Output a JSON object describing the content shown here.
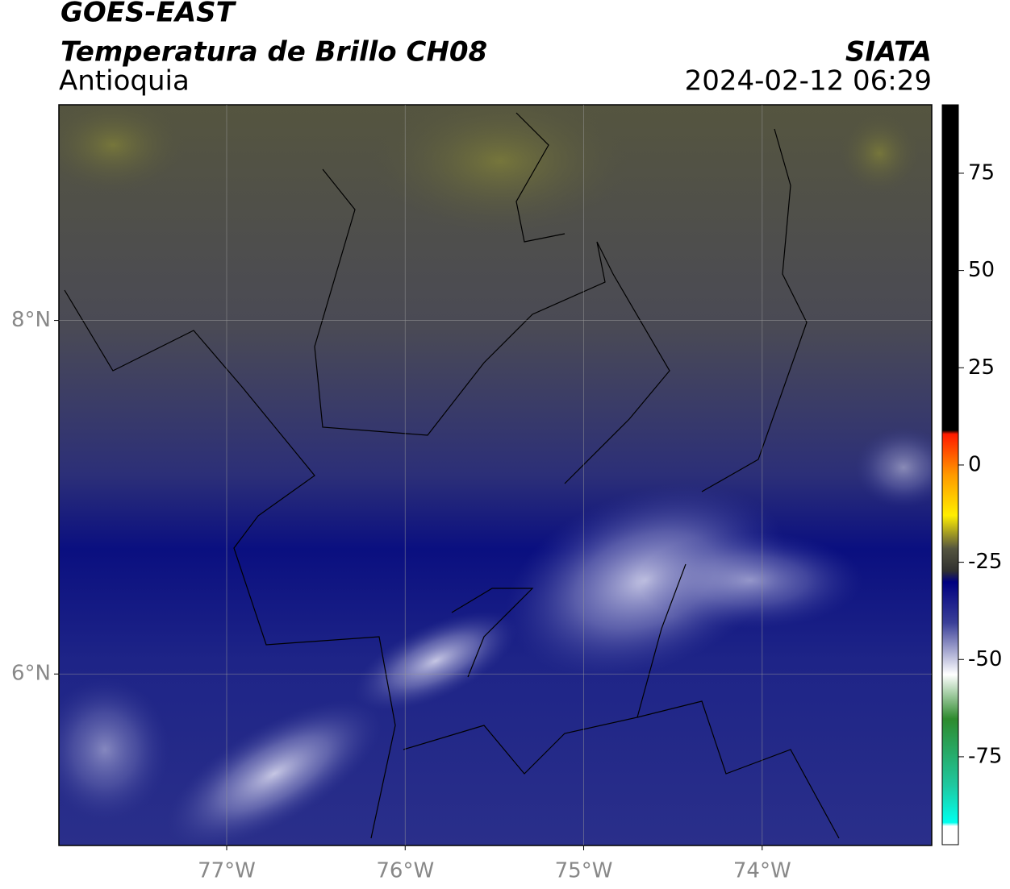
{
  "header": {
    "title": "GOES-EAST",
    "subtitle": "Temperatura de Brillo CH08",
    "region": "Antioquia",
    "source": "SIATA",
    "datetime": "2024-02-12 06:29"
  },
  "map": {
    "xlim": [
      -77.94,
      -73.05
    ],
    "ylim": [
      5.03,
      9.22
    ],
    "xticks": [
      {
        "value": -77,
        "label": "77°W"
      },
      {
        "value": -76,
        "label": "76°W"
      },
      {
        "value": -75,
        "label": "75°W"
      },
      {
        "value": -74,
        "label": "74°W"
      }
    ],
    "yticks": [
      {
        "value": 8,
        "label": "8°N"
      },
      {
        "value": 6,
        "label": "6°N"
      }
    ]
  },
  "colorbar": {
    "lim": [
      -97.6,
      92.6
    ],
    "ticks": [
      75,
      50,
      25,
      0,
      -25,
      -50,
      -75
    ]
  }
}
